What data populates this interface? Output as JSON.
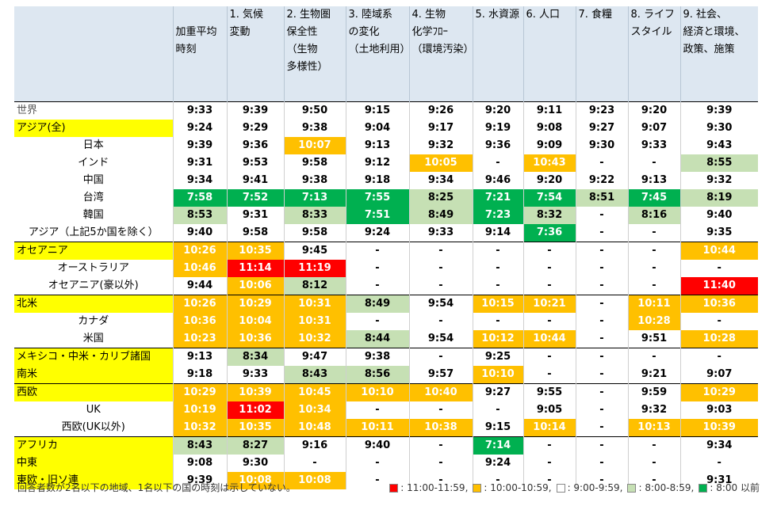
{
  "headers": [
    "加重平均\n時刻",
    "1. 気候\n変動",
    "2. 生物圏\n保全性\n（生物\n多様性）",
    "3. 陸域系\nの変化\n（土地利用）",
    "4. 生物\n化学ﾌﾛｰ\n（環境汚染）",
    "5. 水資源",
    "6. 人口",
    "7. 食糧",
    "8. ライフ\nスタイル",
    "9. 社会、\n経済と環境、\n政策、施策"
  ],
  "rows": [
    {
      "label": "世界",
      "kind": "world",
      "cells": [
        [
          "9:33",
          "w"
        ],
        [
          "9:39",
          "w"
        ],
        [
          "9:50",
          "w"
        ],
        [
          "9:15",
          "w"
        ],
        [
          "9:26",
          "w"
        ],
        [
          "9:20",
          "w"
        ],
        [
          "9:11",
          "w"
        ],
        [
          "9:23",
          "w"
        ],
        [
          "9:20",
          "w"
        ],
        [
          "9:39",
          "w"
        ]
      ]
    },
    {
      "label": "アジア(全)",
      "kind": "region",
      "cells": [
        [
          "9:24",
          "w"
        ],
        [
          "9:29",
          "w"
        ],
        [
          "9:38",
          "w"
        ],
        [
          "9:04",
          "w"
        ],
        [
          "9:17",
          "w"
        ],
        [
          "9:19",
          "w"
        ],
        [
          "9:08",
          "w"
        ],
        [
          "9:27",
          "w"
        ],
        [
          "9:07",
          "w"
        ],
        [
          "9:30",
          "w"
        ]
      ]
    },
    {
      "label": "日本",
      "kind": "sub",
      "cells": [
        [
          "9:39",
          "w"
        ],
        [
          "9:36",
          "w"
        ],
        [
          "10:07",
          "o"
        ],
        [
          "9:13",
          "w"
        ],
        [
          "9:32",
          "w"
        ],
        [
          "9:36",
          "w"
        ],
        [
          "9:09",
          "w"
        ],
        [
          "9:30",
          "w"
        ],
        [
          "9:33",
          "w"
        ],
        [
          "9:43",
          "w"
        ]
      ]
    },
    {
      "label": "インド",
      "kind": "sub",
      "cells": [
        [
          "9:31",
          "w"
        ],
        [
          "9:53",
          "w"
        ],
        [
          "9:58",
          "w"
        ],
        [
          "9:12",
          "w"
        ],
        [
          "10:05",
          "o"
        ],
        [
          "-",
          "w"
        ],
        [
          "10:43",
          "o"
        ],
        [
          "-",
          "w"
        ],
        [
          "-",
          "w"
        ],
        [
          "8:55",
          "l"
        ]
      ]
    },
    {
      "label": "中国",
      "kind": "sub",
      "cells": [
        [
          "9:34",
          "w"
        ],
        [
          "9:41",
          "w"
        ],
        [
          "9:38",
          "w"
        ],
        [
          "9:18",
          "w"
        ],
        [
          "9:34",
          "w"
        ],
        [
          "9:46",
          "w"
        ],
        [
          "9:20",
          "w"
        ],
        [
          "9:22",
          "w"
        ],
        [
          "9:13",
          "w"
        ],
        [
          "9:32",
          "w"
        ]
      ]
    },
    {
      "label": "台湾",
      "kind": "sub",
      "cells": [
        [
          "7:58",
          "d"
        ],
        [
          "7:52",
          "d"
        ],
        [
          "7:13",
          "d"
        ],
        [
          "7:55",
          "d"
        ],
        [
          "8:25",
          "l"
        ],
        [
          "7:21",
          "d"
        ],
        [
          "7:54",
          "d"
        ],
        [
          "8:51",
          "l"
        ],
        [
          "7:45",
          "d"
        ],
        [
          "8:19",
          "l"
        ]
      ]
    },
    {
      "label": "韓国",
      "kind": "sub",
      "cells": [
        [
          "8:53",
          "l"
        ],
        [
          "9:31",
          "w"
        ],
        [
          "8:33",
          "l"
        ],
        [
          "7:51",
          "d"
        ],
        [
          "8:49",
          "l"
        ],
        [
          "7:23",
          "d"
        ],
        [
          "8:32",
          "l"
        ],
        [
          "-",
          "w"
        ],
        [
          "8:16",
          "l"
        ],
        [
          "9:40",
          "w"
        ]
      ]
    },
    {
      "label": "アジア（上記5か国を除く）",
      "kind": "sub",
      "cells": [
        [
          "9:40",
          "w"
        ],
        [
          "9:58",
          "w"
        ],
        [
          "9:58",
          "w"
        ],
        [
          "9:24",
          "w"
        ],
        [
          "9:33",
          "w"
        ],
        [
          "9:14",
          "w"
        ],
        [
          "7:36",
          "d"
        ],
        [
          "-",
          "w"
        ],
        [
          "-",
          "w"
        ],
        [
          "9:35",
          "w"
        ]
      ]
    },
    {
      "label": "オセアニア",
      "kind": "region",
      "sep": true,
      "cells": [
        [
          "10:26",
          "o"
        ],
        [
          "10:35",
          "o"
        ],
        [
          "9:45",
          "w"
        ],
        [
          "-",
          "w"
        ],
        [
          "-",
          "w"
        ],
        [
          "-",
          "w"
        ],
        [
          "-",
          "w"
        ],
        [
          "-",
          "w"
        ],
        [
          "-",
          "w"
        ],
        [
          "10:44",
          "o"
        ]
      ]
    },
    {
      "label": "オーストラリア",
      "kind": "sub",
      "cells": [
        [
          "10:46",
          "o"
        ],
        [
          "11:14",
          "r"
        ],
        [
          "11:19",
          "r"
        ],
        [
          "-",
          "w"
        ],
        [
          "-",
          "w"
        ],
        [
          "-",
          "w"
        ],
        [
          "-",
          "w"
        ],
        [
          "-",
          "w"
        ],
        [
          "-",
          "w"
        ],
        [
          "-",
          "w"
        ]
      ]
    },
    {
      "label": "オセアニア(豪以外)",
      "kind": "sub",
      "cells": [
        [
          "9:44",
          "w"
        ],
        [
          "10:06",
          "o"
        ],
        [
          "8:12",
          "l"
        ],
        [
          "-",
          "w"
        ],
        [
          "-",
          "w"
        ],
        [
          "-",
          "w"
        ],
        [
          "-",
          "w"
        ],
        [
          "-",
          "w"
        ],
        [
          "-",
          "w"
        ],
        [
          "11:40",
          "r"
        ]
      ]
    },
    {
      "label": "北米",
      "kind": "region",
      "sep": true,
      "cells": [
        [
          "10:26",
          "o"
        ],
        [
          "10:29",
          "o"
        ],
        [
          "10:31",
          "o"
        ],
        [
          "8:49",
          "l"
        ],
        [
          "9:54",
          "w"
        ],
        [
          "10:15",
          "o"
        ],
        [
          "10:21",
          "o"
        ],
        [
          "-",
          "w"
        ],
        [
          "10:11",
          "o"
        ],
        [
          "10:36",
          "o"
        ]
      ]
    },
    {
      "label": "カナダ",
      "kind": "sub",
      "cells": [
        [
          "10:36",
          "o"
        ],
        [
          "10:04",
          "o"
        ],
        [
          "10:31",
          "o"
        ],
        [
          "-",
          "w"
        ],
        [
          "-",
          "w"
        ],
        [
          "-",
          "w"
        ],
        [
          "-",
          "w"
        ],
        [
          "-",
          "w"
        ],
        [
          "10:28",
          "o"
        ],
        [
          "-",
          "w"
        ]
      ]
    },
    {
      "label": "米国",
      "kind": "sub",
      "cells": [
        [
          "10:23",
          "o"
        ],
        [
          "10:36",
          "o"
        ],
        [
          "10:32",
          "o"
        ],
        [
          "8:44",
          "l"
        ],
        [
          "9:54",
          "w"
        ],
        [
          "10:12",
          "o"
        ],
        [
          "10:44",
          "o"
        ],
        [
          "-",
          "w"
        ],
        [
          "9:51",
          "w"
        ],
        [
          "10:28",
          "o"
        ]
      ]
    },
    {
      "label": "メキシコ・中米・カリブ諸国",
      "kind": "region",
      "sep": true,
      "cells": [
        [
          "9:13",
          "w"
        ],
        [
          "8:34",
          "l"
        ],
        [
          "9:47",
          "w"
        ],
        [
          "9:38",
          "w"
        ],
        [
          "-",
          "w"
        ],
        [
          "9:25",
          "w"
        ],
        [
          "-",
          "w"
        ],
        [
          "-",
          "w"
        ],
        [
          "-",
          "w"
        ],
        [
          "-",
          "w"
        ]
      ]
    },
    {
      "label": "南米",
      "kind": "region",
      "cells": [
        [
          "9:18",
          "w"
        ],
        [
          "9:33",
          "w"
        ],
        [
          "8:43",
          "l"
        ],
        [
          "8:56",
          "l"
        ],
        [
          "9:57",
          "w"
        ],
        [
          "10:10",
          "o"
        ],
        [
          "-",
          "w"
        ],
        [
          "-",
          "w"
        ],
        [
          "9:21",
          "w"
        ],
        [
          "9:07",
          "w"
        ]
      ]
    },
    {
      "label": "西欧",
      "kind": "region",
      "sep": true,
      "cells": [
        [
          "10:29",
          "o"
        ],
        [
          "10:39",
          "o"
        ],
        [
          "10:45",
          "o"
        ],
        [
          "10:10",
          "o"
        ],
        [
          "10:40",
          "o"
        ],
        [
          "9:27",
          "w"
        ],
        [
          "9:55",
          "w"
        ],
        [
          "-",
          "w"
        ],
        [
          "9:59",
          "w"
        ],
        [
          "10:29",
          "o"
        ]
      ]
    },
    {
      "label": "UK",
      "kind": "sub",
      "cells": [
        [
          "10:19",
          "o"
        ],
        [
          "11:02",
          "r"
        ],
        [
          "10:34",
          "o"
        ],
        [
          "-",
          "w"
        ],
        [
          "-",
          "w"
        ],
        [
          "-",
          "w"
        ],
        [
          "9:05",
          "w"
        ],
        [
          "-",
          "w"
        ],
        [
          "9:32",
          "w"
        ],
        [
          "9:03",
          "w"
        ]
      ]
    },
    {
      "label": "西欧(UK以外)",
      "kind": "sub",
      "cells": [
        [
          "10:32",
          "o"
        ],
        [
          "10:35",
          "o"
        ],
        [
          "10:48",
          "o"
        ],
        [
          "10:11",
          "o"
        ],
        [
          "10:38",
          "o"
        ],
        [
          "9:15",
          "w"
        ],
        [
          "10:14",
          "o"
        ],
        [
          "-",
          "w"
        ],
        [
          "10:13",
          "o"
        ],
        [
          "10:39",
          "o"
        ]
      ]
    },
    {
      "label": "アフリカ",
      "kind": "region",
      "sep": true,
      "cells": [
        [
          "8:43",
          "l"
        ],
        [
          "8:27",
          "l"
        ],
        [
          "9:16",
          "w"
        ],
        [
          "9:40",
          "w"
        ],
        [
          "-",
          "w"
        ],
        [
          "7:14",
          "d"
        ],
        [
          "-",
          "w"
        ],
        [
          "-",
          "w"
        ],
        [
          "-",
          "w"
        ],
        [
          "9:34",
          "w"
        ]
      ]
    },
    {
      "label": "中東",
      "kind": "region",
      "cells": [
        [
          "9:08",
          "w"
        ],
        [
          "9:30",
          "w"
        ],
        [
          "-",
          "w"
        ],
        [
          "-",
          "w"
        ],
        [
          "-",
          "w"
        ],
        [
          "9:24",
          "w"
        ],
        [
          "-",
          "w"
        ],
        [
          "-",
          "w"
        ],
        [
          "-",
          "w"
        ],
        [
          "-",
          "w"
        ]
      ]
    },
    {
      "label": "東欧・旧ソ連",
      "kind": "region",
      "cells": [
        [
          "9:39",
          "w"
        ],
        [
          "10:08",
          "o"
        ],
        [
          "10:08",
          "o"
        ],
        [
          "-",
          "w"
        ],
        [
          "-",
          "w"
        ],
        [
          "-",
          "w"
        ],
        [
          "-",
          "w"
        ],
        [
          "-",
          "w"
        ],
        [
          "-",
          "w"
        ],
        [
          "9:31",
          "w"
        ]
      ]
    }
  ],
  "colors": {
    "r": "#ff0000",
    "o": "#ffc000",
    "w": "#ffffff",
    "l": "#c6e0b4",
    "d": "#00b050",
    "region": "#ffff00",
    "header": "#dde7f1"
  },
  "footnote": "回答者数が2名以下の地域、1名以下の国の時刻は示していない。",
  "legend": [
    {
      "color": "#ff0000",
      "label": ": 11:00-11:59,"
    },
    {
      "color": "#ffc000",
      "label": ": 10:00-10:59,"
    },
    {
      "color": "#ffffff",
      "label": ": 9:00-9:59,"
    },
    {
      "color": "#c6e0b4",
      "label": ": 8:00-8:59,"
    },
    {
      "color": "#00b050",
      "label": ": 8:00 以前"
    }
  ]
}
